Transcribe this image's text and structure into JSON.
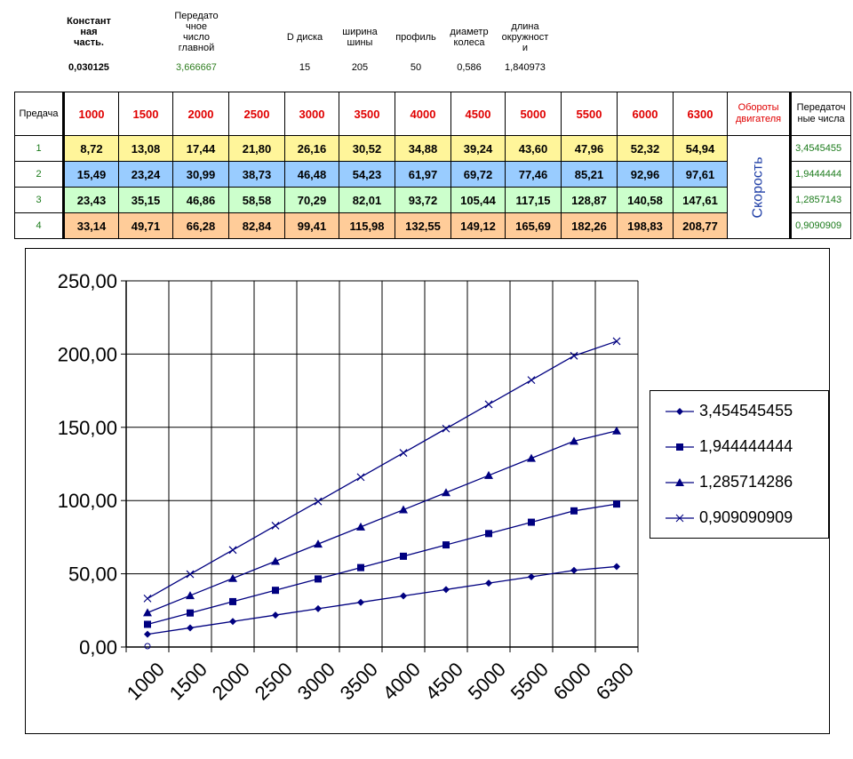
{
  "params": [
    {
      "label": "Констант\nная\nчасть.",
      "value": "0,030125",
      "bold": true
    },
    {
      "label": "Передато\nчное\nчисло\nглавной",
      "value": "3,666667",
      "green": true
    },
    {
      "label": "D диска",
      "value": "15"
    },
    {
      "label": "ширина\nшины",
      "value": "205"
    },
    {
      "label": "профиль",
      "value": "50"
    },
    {
      "label": "диаметр\nколеса",
      "value": "0,586"
    },
    {
      "label": "длина\nокружност\nи",
      "value": "1,840973"
    }
  ],
  "table": {
    "gear_header": "Предача",
    "rpm": [
      "1000",
      "1500",
      "2000",
      "2500",
      "3000",
      "3500",
      "4000",
      "4500",
      "5000",
      "5500",
      "6000",
      "6300"
    ],
    "rpm_label": "Обороты двигателя",
    "ratio_header": "Передаточ ные числа",
    "speed_label": "Скорость",
    "rows": [
      {
        "gear": "1",
        "values": [
          "8,72",
          "13,08",
          "17,44",
          "21,80",
          "26,16",
          "30,52",
          "34,88",
          "39,24",
          "43,60",
          "47,96",
          "52,32",
          "54,94"
        ],
        "ratio": "3,4545455"
      },
      {
        "gear": "2",
        "values": [
          "15,49",
          "23,24",
          "30,99",
          "38,73",
          "46,48",
          "54,23",
          "61,97",
          "69,72",
          "77,46",
          "85,21",
          "92,96",
          "97,61"
        ],
        "ratio": "1,9444444"
      },
      {
        "gear": "3",
        "values": [
          "23,43",
          "35,15",
          "46,86",
          "58,58",
          "70,29",
          "82,01",
          "93,72",
          "105,44",
          "117,15",
          "128,87",
          "140,58",
          "147,61"
        ],
        "ratio": "1,2857143"
      },
      {
        "gear": "4",
        "values": [
          "33,14",
          "49,71",
          "66,28",
          "82,84",
          "99,41",
          "115,98",
          "132,55",
          "149,12",
          "165,69",
          "182,26",
          "198,83",
          "208,77"
        ],
        "ratio": "0,9090909"
      }
    ]
  },
  "chart_data": {
    "type": "line",
    "title": "",
    "xlabel": "",
    "ylabel": "",
    "categories": [
      "1000",
      "1500",
      "2000",
      "2500",
      "3000",
      "3500",
      "4000",
      "4500",
      "5000",
      "5500",
      "6000",
      "6300"
    ],
    "ylim": [
      0,
      250
    ],
    "yticks": [
      "0,00",
      "50,00",
      "100,00",
      "150,00",
      "200,00",
      "250,00"
    ],
    "grid": true,
    "legend_position": "right",
    "series": [
      {
        "name": "3,454545455",
        "marker": "diamond",
        "values": [
          8.72,
          13.08,
          17.44,
          21.8,
          26.16,
          30.52,
          34.88,
          39.24,
          43.6,
          47.96,
          52.32,
          54.94
        ]
      },
      {
        "name": "1,944444444",
        "marker": "square",
        "values": [
          15.49,
          23.24,
          30.99,
          38.73,
          46.48,
          54.23,
          61.97,
          69.72,
          77.46,
          85.21,
          92.96,
          97.61
        ]
      },
      {
        "name": "1,285714286",
        "marker": "triangle",
        "values": [
          23.43,
          35.15,
          46.86,
          58.58,
          70.29,
          82.01,
          93.72,
          105.44,
          117.15,
          128.87,
          140.58,
          147.61
        ]
      },
      {
        "name": "0,909090909",
        "marker": "x",
        "values": [
          33.14,
          49.71,
          66.28,
          82.84,
          99.41,
          115.98,
          132.55,
          149.12,
          165.69,
          182.26,
          198.83,
          208.77
        ]
      }
    ],
    "line_color": "#000080"
  }
}
